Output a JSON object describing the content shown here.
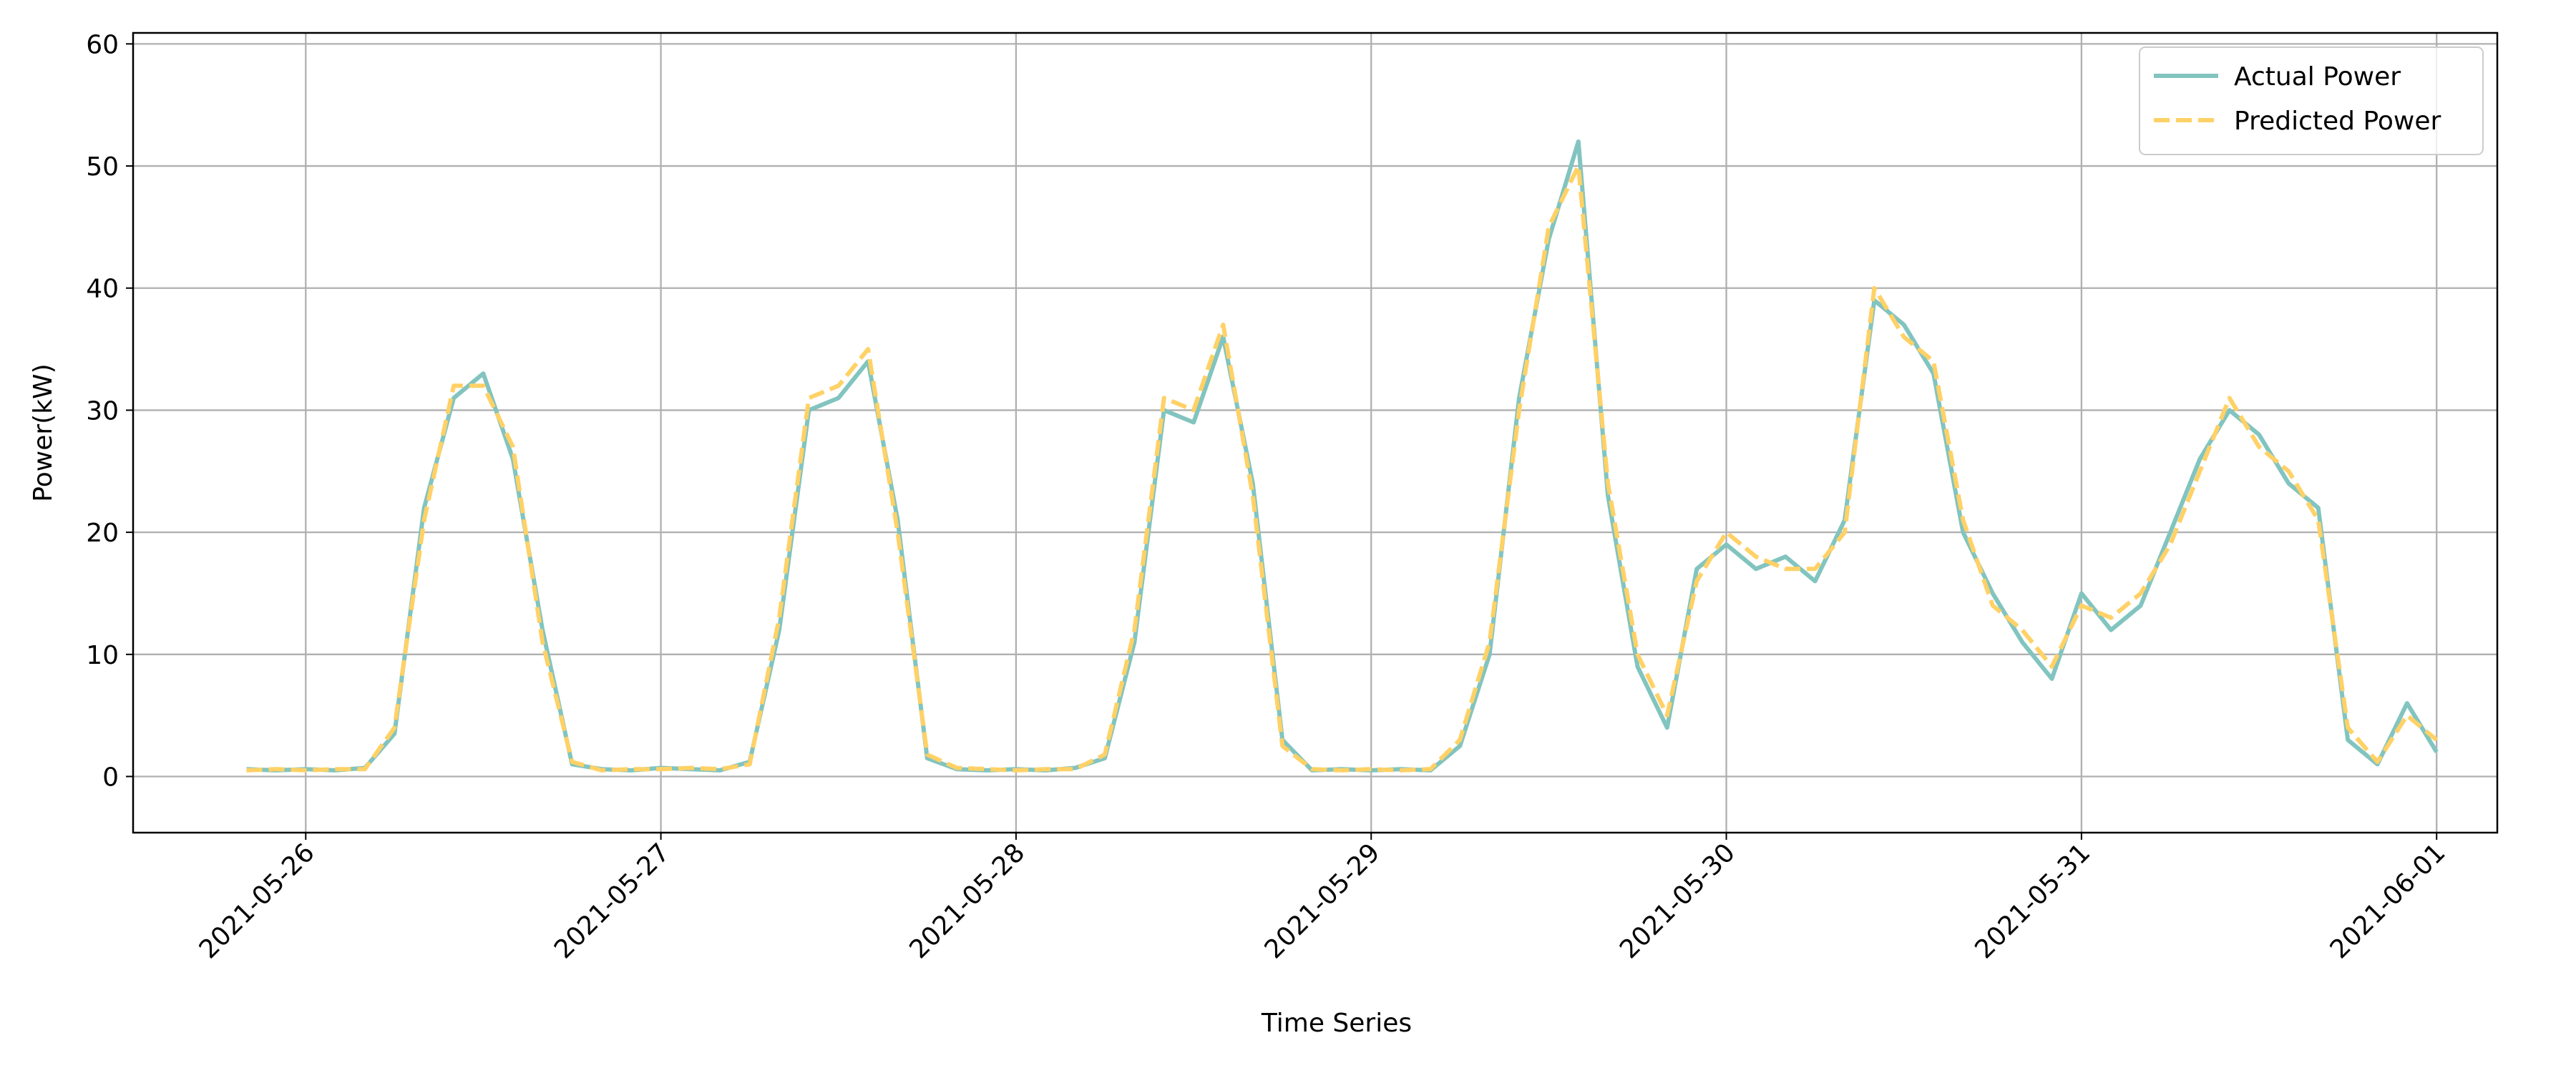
{
  "chart_data": {
    "type": "line",
    "x_label": "Time Series",
    "y_label": "Power(kW)",
    "x": [
      "2021-05-25 20:00",
      "2021-05-25 22:00",
      "2021-05-26 00:00",
      "2021-05-26 02:00",
      "2021-05-26 04:00",
      "2021-05-26 06:00",
      "2021-05-26 08:00",
      "2021-05-26 10:00",
      "2021-05-26 12:00",
      "2021-05-26 14:00",
      "2021-05-26 16:00",
      "2021-05-26 18:00",
      "2021-05-26 20:00",
      "2021-05-26 22:00",
      "2021-05-27 00:00",
      "2021-05-27 02:00",
      "2021-05-27 04:00",
      "2021-05-27 06:00",
      "2021-05-27 08:00",
      "2021-05-27 10:00",
      "2021-05-27 12:00",
      "2021-05-27 14:00",
      "2021-05-27 16:00",
      "2021-05-27 18:00",
      "2021-05-27 20:00",
      "2021-05-27 22:00",
      "2021-05-28 00:00",
      "2021-05-28 02:00",
      "2021-05-28 04:00",
      "2021-05-28 06:00",
      "2021-05-28 08:00",
      "2021-05-28 10:00",
      "2021-05-28 12:00",
      "2021-05-28 14:00",
      "2021-05-28 16:00",
      "2021-05-28 18:00",
      "2021-05-28 20:00",
      "2021-05-28 22:00",
      "2021-05-29 00:00",
      "2021-05-29 02:00",
      "2021-05-29 04:00",
      "2021-05-29 06:00",
      "2021-05-29 08:00",
      "2021-05-29 10:00",
      "2021-05-29 12:00",
      "2021-05-29 14:00",
      "2021-05-29 16:00",
      "2021-05-29 18:00",
      "2021-05-29 20:00",
      "2021-05-29 22:00",
      "2021-05-30 00:00",
      "2021-05-30 02:00",
      "2021-05-30 04:00",
      "2021-05-30 06:00",
      "2021-05-30 08:00",
      "2021-05-30 10:00",
      "2021-05-30 12:00",
      "2021-05-30 14:00",
      "2021-05-30 16:00",
      "2021-05-30 18:00",
      "2021-05-30 20:00",
      "2021-05-30 22:00",
      "2021-05-31 00:00",
      "2021-05-31 02:00",
      "2021-05-31 04:00",
      "2021-05-31 06:00",
      "2021-05-31 08:00",
      "2021-05-31 10:00",
      "2021-05-31 12:00",
      "2021-05-31 14:00",
      "2021-05-31 16:00",
      "2021-05-31 18:00",
      "2021-05-31 20:00",
      "2021-05-31 22:00",
      "2021-06-01 00:00"
    ],
    "series": [
      {
        "name": "Actual Power",
        "color": "#82c4bf",
        "dashed": false,
        "values": [
          0.6,
          0.5,
          0.6,
          0.5,
          0.7,
          3.5,
          22,
          31,
          33,
          26,
          12,
          1,
          0.6,
          0.5,
          0.7,
          0.6,
          0.5,
          1.2,
          12,
          30,
          31,
          34,
          21,
          1.5,
          0.6,
          0.5,
          0.6,
          0.5,
          0.7,
          1.5,
          11,
          30,
          29,
          36,
          24,
          3,
          0.5,
          0.6,
          0.5,
          0.6,
          0.5,
          2.5,
          10,
          31,
          44,
          52,
          23,
          9,
          4,
          17,
          19,
          17,
          18,
          16,
          21,
          39,
          37,
          33,
          20,
          15,
          11,
          8,
          15,
          12,
          14,
          20,
          26,
          30,
          28,
          24,
          22,
          3,
          1,
          6,
          2
        ]
      },
      {
        "name": "Predicted Power",
        "color": "#ffd166",
        "dashed": true,
        "values": [
          0.5,
          0.6,
          0.5,
          0.6,
          0.6,
          4,
          21,
          32,
          32,
          27,
          11,
          1.2,
          0.5,
          0.6,
          0.6,
          0.7,
          0.6,
          1,
          13,
          31,
          32,
          35,
          20,
          1.8,
          0.7,
          0.6,
          0.5,
          0.6,
          0.6,
          1.8,
          12,
          31,
          30,
          37,
          23,
          2.5,
          0.6,
          0.5,
          0.6,
          0.5,
          0.6,
          3,
          11,
          30,
          45,
          50,
          24,
          10,
          5,
          16,
          20,
          18,
          17,
          17,
          20,
          40,
          36,
          34,
          21,
          14,
          12,
          9,
          14,
          13,
          15,
          19,
          25,
          31,
          27,
          25,
          21,
          4,
          1.2,
          5,
          3
        ]
      }
    ],
    "xlim": [
      "2021-05-25 12:20",
      "2021-06-01 04:06"
    ],
    "xticks": [
      "2021-05-26",
      "2021-05-27",
      "2021-05-28",
      "2021-05-29",
      "2021-05-30",
      "2021-05-31",
      "2021-06-01"
    ],
    "ylim": [
      -4.6,
      60.9
    ],
    "yticks": [
      0,
      10,
      20,
      30,
      40,
      50,
      60
    ],
    "grid": true,
    "legend": "upper right"
  }
}
